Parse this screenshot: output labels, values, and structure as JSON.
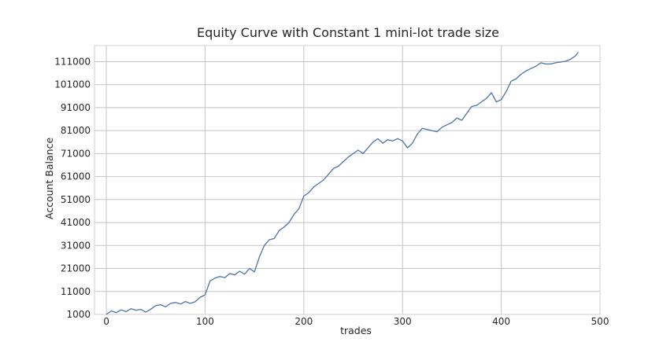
{
  "chart_data": {
    "type": "line",
    "title": "Equity Curve with Constant 1 mini-lot trade size",
    "xlabel": "trades",
    "ylabel": "Account Balance",
    "xlim": [
      -12,
      500
    ],
    "ylim": [
      1000,
      118000
    ],
    "x_ticks": [
      0,
      100,
      200,
      300,
      400,
      500
    ],
    "y_ticks": [
      1000,
      11000,
      21000,
      31000,
      41000,
      51000,
      61000,
      71000,
      81000,
      91000,
      101000,
      111000
    ],
    "grid": true,
    "series": [
      {
        "color": "#4c72b0",
        "x": [
          0,
          5,
          10,
          15,
          20,
          25,
          30,
          35,
          40,
          45,
          50,
          55,
          60,
          65,
          70,
          75,
          80,
          85,
          90,
          95,
          100,
          105,
          110,
          115,
          120,
          125,
          130,
          135,
          140,
          145,
          150,
          155,
          160,
          165,
          170,
          175,
          180,
          185,
          190,
          195,
          200,
          205,
          210,
          215,
          220,
          225,
          230,
          235,
          240,
          245,
          250,
          255,
          260,
          265,
          270,
          275,
          280,
          285,
          290,
          295,
          300,
          305,
          310,
          315,
          320,
          325,
          330,
          335,
          340,
          345,
          350,
          355,
          360,
          365,
          370,
          375,
          380,
          385,
          390,
          395,
          400,
          405,
          410,
          415,
          420,
          425,
          430,
          435,
          440,
          445,
          450,
          455,
          460,
          465,
          470,
          475,
          478
        ],
        "y": [
          1000,
          2500,
          1800,
          3000,
          2200,
          3500,
          2800,
          3200,
          2000,
          3300,
          4800,
          5200,
          4300,
          5800,
          6200,
          5500,
          6600,
          5800,
          6500,
          8500,
          9500,
          15500,
          16800,
          17500,
          17000,
          18800,
          18200,
          19800,
          18500,
          21000,
          19500,
          26000,
          31000,
          33500,
          34000,
          37500,
          39000,
          41000,
          44500,
          47000,
          52500,
          54000,
          56500,
          58000,
          59500,
          62000,
          64500,
          65500,
          67500,
          69500,
          71000,
          72500,
          71000,
          73500,
          76000,
          77500,
          75500,
          77000,
          76500,
          77500,
          76500,
          73500,
          75500,
          79500,
          82000,
          81500,
          81000,
          80500,
          82500,
          83500,
          84500,
          86500,
          85500,
          88500,
          91500,
          92000,
          93500,
          95000,
          97500,
          93500,
          94500,
          98000,
          102500,
          103500,
          105500,
          107000,
          108000,
          109000,
          110500,
          110000,
          110000,
          110500,
          110800,
          111200,
          112000,
          113500,
          115200
        ]
      }
    ]
  }
}
